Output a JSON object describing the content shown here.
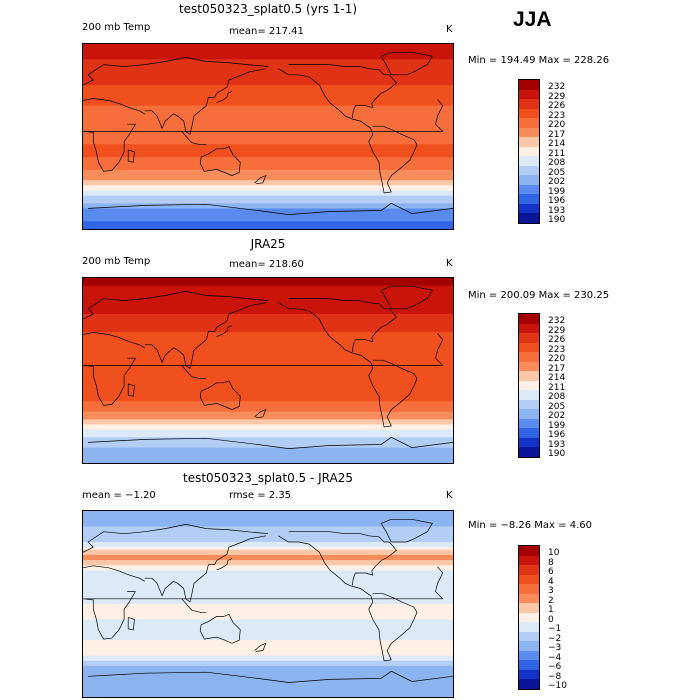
{
  "season": "JJA",
  "panels": [
    {
      "title": "test050323_splat0.5 (yrs 1-1)",
      "left_label": "200 mb Temp",
      "stat": "mean= 217.41",
      "units": "K",
      "minmax": "Min = 194.49 Max = 228.26"
    },
    {
      "title": "JRA25",
      "left_label": "200 mb Temp",
      "stat": "mean= 218.60",
      "units": "K",
      "minmax": "Min = 200.09 Max = 230.25"
    },
    {
      "title": "test050323_splat0.5 - JRA25",
      "left_label": "mean =  −1.20",
      "stat": "rmse =   2.35",
      "units": "K",
      "minmax": "Min =  −8.26 Max =   4.60"
    }
  ],
  "chart_data": [
    {
      "type": "heatmap",
      "title": "test050323_splat0.5 (yrs 1-1)",
      "variable": "200 mb Temp",
      "units": "K",
      "mean": 217.41,
      "min": 194.49,
      "max": 228.26,
      "levels": [
        "232",
        "229",
        "226",
        "223",
        "220",
        "217",
        "214",
        "211",
        "208",
        "205",
        "202",
        "199",
        "196",
        "193",
        "190"
      ],
      "colors": [
        "#a50000",
        "#c8140a",
        "#e03214",
        "#f0501e",
        "#f56e3c",
        "#f88c5a",
        "#fac8a8",
        "#fff0e6",
        "#dceaf8",
        "#b4cdf5",
        "#8cb4f0",
        "#5a8cf0",
        "#3264e6",
        "#1432c8",
        "#0a1496"
      ],
      "lat_profile": [
        {
          "lat": 90,
          "value": 227
        },
        {
          "lat": 75,
          "value": 226
        },
        {
          "lat": 60,
          "value": 225
        },
        {
          "lat": 45,
          "value": 222
        },
        {
          "lat": 30,
          "value": 220
        },
        {
          "lat": 15,
          "value": 218
        },
        {
          "lat": 0,
          "value": 219
        },
        {
          "lat": -15,
          "value": 221
        },
        {
          "lat": -30,
          "value": 218
        },
        {
          "lat": -45,
          "value": 213
        },
        {
          "lat": -60,
          "value": 204
        },
        {
          "lat": -75,
          "value": 197
        },
        {
          "lat": -90,
          "value": 195
        }
      ]
    },
    {
      "type": "heatmap",
      "title": "JRA25",
      "variable": "200 mb Temp",
      "units": "K",
      "mean": 218.6,
      "min": 200.09,
      "max": 230.25,
      "levels": [
        "232",
        "229",
        "226",
        "223",
        "220",
        "217",
        "214",
        "211",
        "208",
        "205",
        "202",
        "199",
        "196",
        "193",
        "190"
      ],
      "colors": [
        "#a50000",
        "#c8140a",
        "#e03214",
        "#f0501e",
        "#f56e3c",
        "#f88c5a",
        "#fac8a8",
        "#fff0e6",
        "#dceaf8",
        "#b4cdf5",
        "#8cb4f0",
        "#5a8cf0",
        "#3264e6",
        "#1432c8",
        "#0a1496"
      ],
      "lat_profile": [
        {
          "lat": 90,
          "value": 230
        },
        {
          "lat": 75,
          "value": 228
        },
        {
          "lat": 60,
          "value": 227
        },
        {
          "lat": 45,
          "value": 224
        },
        {
          "lat": 30,
          "value": 222
        },
        {
          "lat": 15,
          "value": 220
        },
        {
          "lat": 0,
          "value": 220
        },
        {
          "lat": -15,
          "value": 221
        },
        {
          "lat": -30,
          "value": 220
        },
        {
          "lat": -45,
          "value": 215
        },
        {
          "lat": -60,
          "value": 207
        },
        {
          "lat": -75,
          "value": 202
        },
        {
          "lat": -90,
          "value": 201
        }
      ]
    },
    {
      "type": "heatmap",
      "title": "test050323_splat0.5 - JRA25",
      "units": "K",
      "mean": -1.2,
      "rmse": 2.35,
      "min": -8.26,
      "max": 4.6,
      "levels": [
        "10",
        "8",
        "6",
        "4",
        "3",
        "2",
        "1",
        "0",
        "−1",
        "−2",
        "−3",
        "−4",
        "−6",
        "−8",
        "−10"
      ],
      "colors": [
        "#a50000",
        "#c8140a",
        "#e03214",
        "#f0501e",
        "#f56e3c",
        "#f88c5a",
        "#fac8a8",
        "#fff0e6",
        "#dceaf8",
        "#b4cdf5",
        "#8cb4f0",
        "#5a8cf0",
        "#3264e6",
        "#1432c8",
        "#0a1496"
      ],
      "lat_profile": [
        {
          "lat": 90,
          "value": -4
        },
        {
          "lat": 75,
          "value": -3
        },
        {
          "lat": 60,
          "value": -2
        },
        {
          "lat": 45,
          "value": 1.5
        },
        {
          "lat": 30,
          "value": -1.5
        },
        {
          "lat": 15,
          "value": -1.5
        },
        {
          "lat": 0,
          "value": -1
        },
        {
          "lat": -15,
          "value": -1
        },
        {
          "lat": -30,
          "value": -1.5
        },
        {
          "lat": -45,
          "value": 0
        },
        {
          "lat": -60,
          "value": -3
        },
        {
          "lat": -75,
          "value": -4
        },
        {
          "lat": -90,
          "value": -4
        }
      ]
    }
  ]
}
